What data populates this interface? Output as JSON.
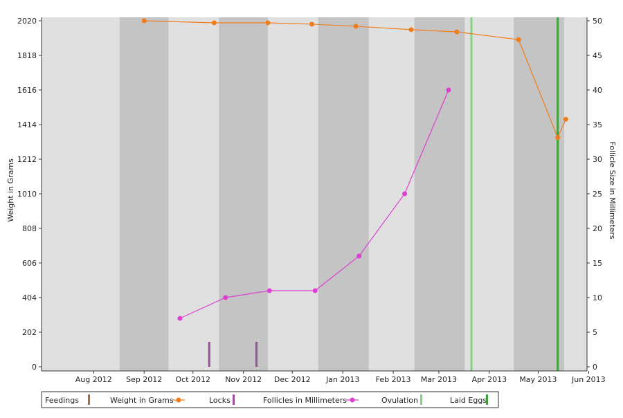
{
  "chart_data": {
    "type": "line",
    "title": "",
    "y_left": {
      "label": "Weight in Grams",
      "ticks": [
        0,
        202,
        404,
        606,
        808,
        1010,
        1212,
        1414,
        1616,
        1818,
        2020
      ],
      "range": [
        0,
        2020
      ]
    },
    "y_right": {
      "label": "Follicle Size in Millimeters",
      "ticks": [
        0,
        5,
        10,
        15,
        20,
        25,
        30,
        35,
        40,
        45,
        50
      ],
      "range": [
        0,
        50
      ]
    },
    "x_axis": {
      "ticks": [
        "Aug 2012",
        "Sep 2012",
        "Oct 2012",
        "Nov 2012",
        "Dec 2012",
        "Jan 2013",
        "Feb 2013",
        "Mar 2013",
        "Apr 2013",
        "May 2013",
        "Jun 2013"
      ],
      "range": [
        "2012-07-15",
        "2013-06-15"
      ]
    },
    "month_bands": [
      {
        "start": "2012-08-01",
        "end": "2012-09-01",
        "shade": "light"
      },
      {
        "start": "2012-09-01",
        "end": "2012-10-01",
        "shade": "dark"
      },
      {
        "start": "2012-10-01",
        "end": "2012-11-01",
        "shade": "light"
      },
      {
        "start": "2012-11-01",
        "end": "2012-12-01",
        "shade": "dark"
      },
      {
        "start": "2012-12-01",
        "end": "2013-01-01",
        "shade": "light"
      },
      {
        "start": "2013-01-01",
        "end": "2013-02-01",
        "shade": "dark"
      },
      {
        "start": "2013-02-01",
        "end": "2013-03-01",
        "shade": "light"
      },
      {
        "start": "2013-03-01",
        "end": "2013-04-01",
        "shade": "dark"
      },
      {
        "start": "2013-04-01",
        "end": "2013-05-01",
        "shade": "light"
      },
      {
        "start": "2013-05-01",
        "end": "2013-06-01",
        "shade": "dark"
      }
    ],
    "series": [
      {
        "name": "Weight in Grams",
        "axis": "left",
        "color": "#f07d1a",
        "points": [
          {
            "x": "2012-09-16",
            "y": 2020
          },
          {
            "x": "2012-10-29",
            "y": 2008
          },
          {
            "x": "2012-12-01",
            "y": 2008
          },
          {
            "x": "2012-12-28",
            "y": 2000
          },
          {
            "x": "2013-01-24",
            "y": 1988
          },
          {
            "x": "2013-02-27",
            "y": 1968
          },
          {
            "x": "2013-03-27",
            "y": 1955
          },
          {
            "x": "2013-05-04",
            "y": 1910
          },
          {
            "x": "2013-05-28",
            "y": 1338
          },
          {
            "x": "2013-06-02",
            "y": 1445
          }
        ]
      },
      {
        "name": "Follicles in Millimeters",
        "axis": "right",
        "color": "#dd3fd0",
        "points": [
          {
            "x": "2012-10-08",
            "y": 7
          },
          {
            "x": "2012-11-05",
            "y": 10
          },
          {
            "x": "2012-12-02",
            "y": 11
          },
          {
            "x": "2012-12-30",
            "y": 11
          },
          {
            "x": "2013-01-26",
            "y": 16
          },
          {
            "x": "2013-02-23",
            "y": 25
          },
          {
            "x": "2013-03-22",
            "y": 40
          }
        ]
      }
    ],
    "events": [
      {
        "name": "Locks",
        "type": "short-bar",
        "color": "#9a4f9a",
        "x": "2012-10-26",
        "height": 3.6
      },
      {
        "name": "Locks",
        "type": "short-bar",
        "color": "#9a4f9a",
        "x": "2012-11-24",
        "height": 3.6
      },
      {
        "name": "Ovulation",
        "type": "full-line",
        "color": "#82d482",
        "x": "2013-04-05"
      },
      {
        "name": "Laid Eggs",
        "type": "full-line",
        "color": "#3da23d",
        "x": "2013-05-28"
      }
    ],
    "legend": {
      "placement": "bottom",
      "items": [
        {
          "label": "Feedings",
          "marker": "bar",
          "color": "#a0704a"
        },
        {
          "label": "Weight in Grams",
          "marker": "line-dot",
          "color": "#f07d1a"
        },
        {
          "label": "Locks",
          "marker": "bar",
          "color": "#9a4f9a"
        },
        {
          "label": "Follicles in Millimeters",
          "marker": "line-dot",
          "color": "#dd3fd0"
        },
        {
          "label": "Ovulation",
          "marker": "bar",
          "color": "#82d482"
        },
        {
          "label": "Laid Eggs",
          "marker": "bar",
          "color": "#3da23d"
        }
      ]
    },
    "colors": {
      "band_light": "#e0e0e0",
      "band_dark": "#c4c4c4",
      "outside": "#e0e0e0"
    }
  }
}
